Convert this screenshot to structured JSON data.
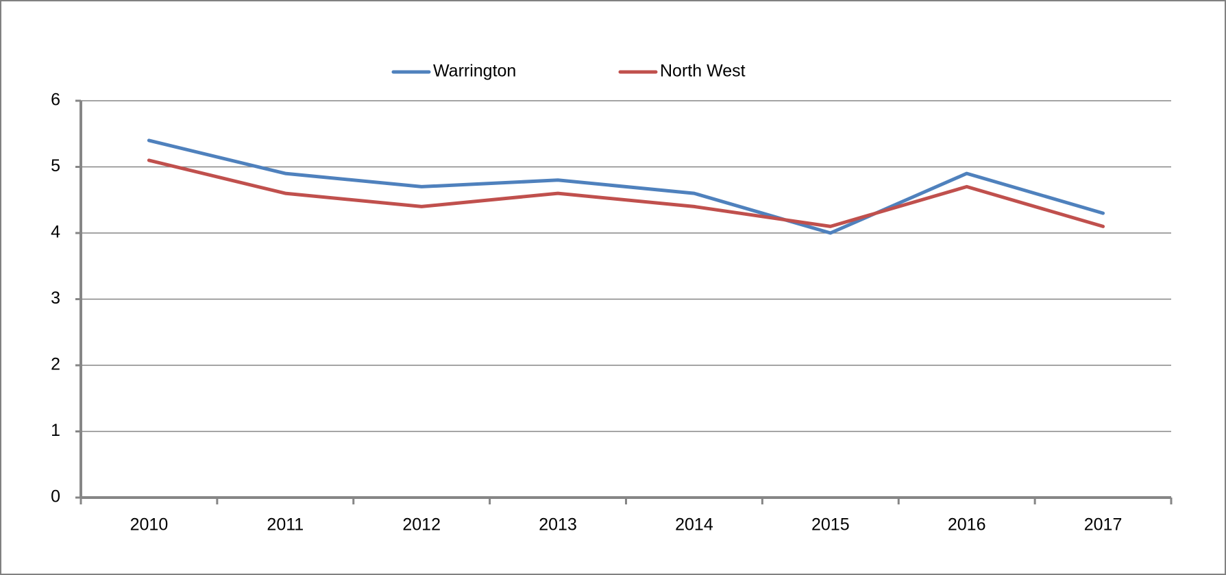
{
  "chart_data": {
    "type": "line",
    "categories": [
      "2010",
      "2011",
      "2012",
      "2013",
      "2014",
      "2015",
      "2016",
      "2017"
    ],
    "series": [
      {
        "name": "Warrington",
        "color": "#4f81bd",
        "values": [
          5.4,
          4.9,
          4.7,
          4.8,
          4.6,
          4.0,
          4.9,
          4.3
        ]
      },
      {
        "name": "North West",
        "color": "#c0504d",
        "values": [
          5.1,
          4.6,
          4.4,
          4.6,
          4.4,
          4.1,
          4.7,
          4.1
        ]
      }
    ],
    "ylim": [
      0,
      6
    ],
    "yticks": [
      0,
      1,
      2,
      3,
      4,
      5,
      6
    ],
    "grid": true,
    "legend": "top"
  }
}
